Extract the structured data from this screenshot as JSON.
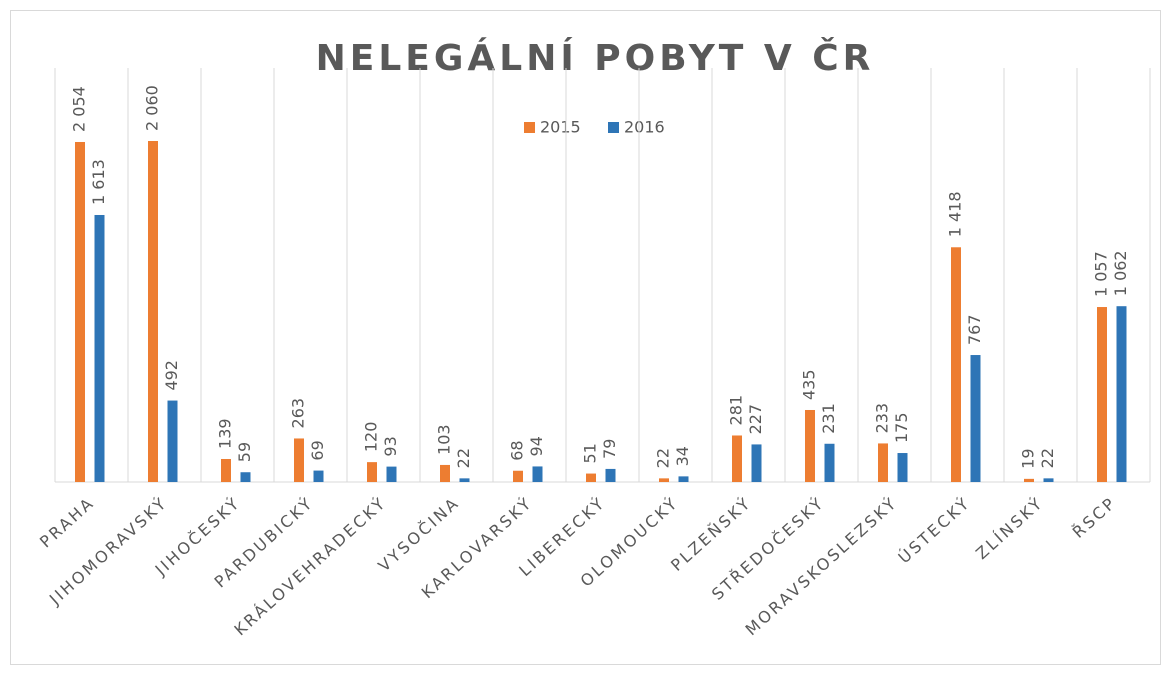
{
  "chart_data": {
    "type": "bar",
    "title": "NELEGÁLNÍ POBYT V ČR",
    "categories": [
      "PRAHA",
      "JIHOMORAVSKÝ",
      "JIHOČESKÝ",
      "PARDUBICKÝ",
      "KRÁLOVEHRADECKÝ",
      "VYSOČINA",
      "KARLOVARSKÝ",
      "LIBERECKÝ",
      "OLOMOUCKÝ",
      "PLZEŇSKÝ",
      "STŘEDOČESKÝ",
      "MORAVSKOSLEZSKÝ",
      "ÚSTECKÝ",
      "ZLÍNSKÝ",
      "ŘSCP"
    ],
    "series": [
      {
        "name": "2015",
        "color": "#ed7d31",
        "values": [
          2054,
          2060,
          139,
          263,
          120,
          103,
          68,
          51,
          22,
          281,
          435,
          233,
          1418,
          19,
          1057
        ],
        "value_labels": [
          "2 054",
          "2 060",
          "139",
          "263",
          "120",
          "103",
          "68",
          "51",
          "22",
          "281",
          "435",
          "233",
          "1 418",
          "19",
          "1 057"
        ]
      },
      {
        "name": "2016",
        "color": "#2e75b6",
        "values": [
          1613,
          492,
          59,
          69,
          93,
          22,
          94,
          79,
          34,
          227,
          231,
          175,
          767,
          22,
          1062
        ],
        "value_labels": [
          "1 613",
          "492",
          "59",
          "69",
          "93",
          "22",
          "94",
          "79",
          "34",
          "227",
          "231",
          "175",
          "767",
          "22",
          "1 062"
        ]
      }
    ],
    "legend": "top",
    "grid": true
  }
}
